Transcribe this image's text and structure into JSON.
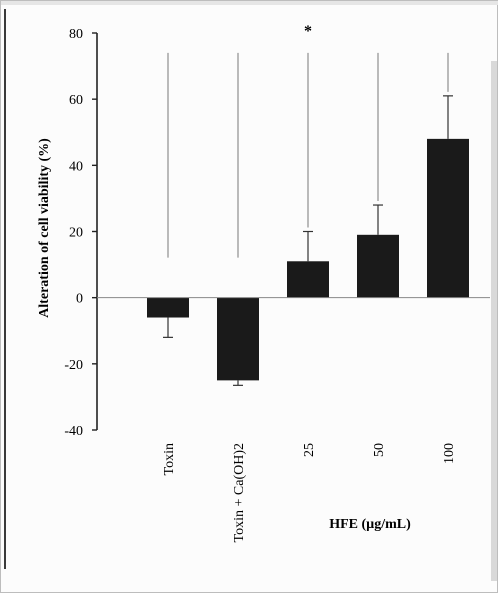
{
  "chart_data": {
    "type": "bar",
    "title": "",
    "ylabel": "Alteration of cell viability (%)",
    "xlabel": "HFE (µg/mL)",
    "categories": [
      "Toxin",
      "Toxin + Ca(OH)2",
      "25",
      "50",
      "100"
    ],
    "values": [
      -6,
      -25,
      11,
      19,
      48
    ],
    "errors": [
      6,
      1.5,
      9,
      9,
      13
    ],
    "significance": [
      "",
      "",
      "*",
      "",
      ""
    ],
    "ylim": [
      -40,
      80
    ],
    "yticks": [
      80,
      60,
      40,
      20,
      0,
      -20,
      -40
    ],
    "legend": "none",
    "bar_color": "#1a1a1a"
  }
}
